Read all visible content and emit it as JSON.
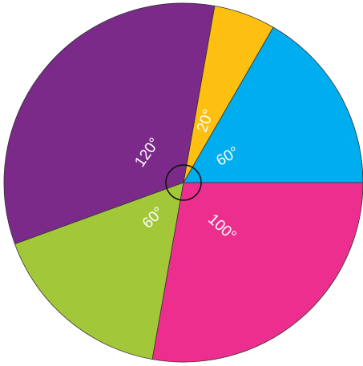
{
  "chart_data": {
    "type": "pie",
    "values": [
      60,
      20,
      120,
      60,
      100
    ],
    "value_labels": [
      "60°",
      "20°",
      "120°",
      "60°",
      "100°"
    ],
    "colors": [
      "#00aeef",
      "#fdc010",
      "#7b2a8a",
      "#a2c83a",
      "#ec2f8e"
    ]
  }
}
